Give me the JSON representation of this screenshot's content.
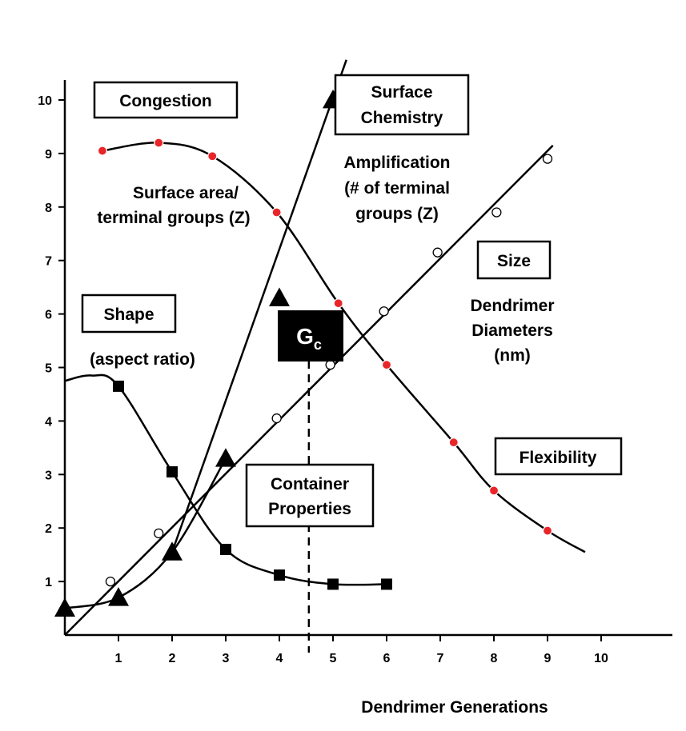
{
  "chart_data": {
    "type": "line",
    "title": "",
    "xlabel": "Dendrimer Generations",
    "ylabel": "",
    "xlim": [
      0,
      10
    ],
    "ylim": [
      0,
      10
    ],
    "grid": false,
    "x_ticks": [
      "1",
      "2",
      "3",
      "4",
      "5",
      "6",
      "7",
      "8",
      "9",
      "10"
    ],
    "y_ticks": [
      "1",
      "2",
      "3",
      "4",
      "5",
      "6",
      "7",
      "8",
      "9",
      "10"
    ],
    "series": [
      {
        "marker": "filled-triangle",
        "color": "#000000",
        "x": [
          0,
          1,
          2,
          3,
          4,
          5
        ],
        "y": [
          0.5,
          0.7,
          1.55,
          3.3,
          6.3,
          10.0
        ]
      },
      {
        "marker": "filled-square",
        "color": "#000000",
        "x": [
          1,
          2,
          3,
          4,
          5,
          6
        ],
        "y": [
          4.65,
          3.05,
          1.6,
          1.12,
          0.95,
          0.95
        ]
      },
      {
        "marker": "red-circle",
        "color": "#e8262a",
        "x": [
          0.7,
          1.75,
          2.75,
          3.95,
          5.1,
          6.0,
          7.25,
          8.0,
          9.0
        ],
        "y": [
          9.05,
          9.2,
          8.95,
          7.9,
          6.2,
          5.05,
          3.6,
          2.7,
          1.95
        ]
      },
      {
        "marker": "open-circle",
        "color": "#000000",
        "x": [
          0.85,
          1.75,
          3.95,
          4.95,
          5.95,
          6.95,
          8.05,
          9.0
        ],
        "y": [
          1.0,
          1.9,
          4.05,
          5.05,
          6.05,
          7.15,
          7.9,
          8.9
        ]
      }
    ],
    "fit_lines": {
      "size_line": {
        "x": [
          0,
          9.1
        ],
        "y": [
          0,
          9.15
        ]
      },
      "chemistry_line": {
        "x": [
          2.0,
          5.25
        ],
        "y": [
          1.55,
          10.75
        ]
      }
    },
    "annotations": [
      {
        "boxed": true,
        "text": [
          "Congestion"
        ]
      },
      {
        "boxed": true,
        "text": [
          "Surface",
          "Chemistry"
        ]
      },
      {
        "boxed": false,
        "text": [
          "Surface area/",
          "terminal groups (Z)"
        ]
      },
      {
        "boxed": false,
        "text": [
          "Amplification",
          "(# of terminal",
          "groups (Z)"
        ]
      },
      {
        "boxed": true,
        "text": [
          "Size"
        ]
      },
      {
        "boxed": true,
        "text": [
          "Shape"
        ]
      },
      {
        "boxed": false,
        "text": [
          "Dendrimer",
          "Diameters",
          "(nm)"
        ]
      },
      {
        "boxed": false,
        "text": [
          "(aspect ratio)"
        ]
      },
      {
        "boxed": true,
        "inverted": true,
        "text": [
          "G",
          "c"
        ]
      },
      {
        "boxed": true,
        "text": [
          "Flexibility"
        ]
      },
      {
        "boxed": true,
        "text": [
          "Container",
          "Properties"
        ]
      }
    ],
    "dashed_line_x": 4.55
  }
}
